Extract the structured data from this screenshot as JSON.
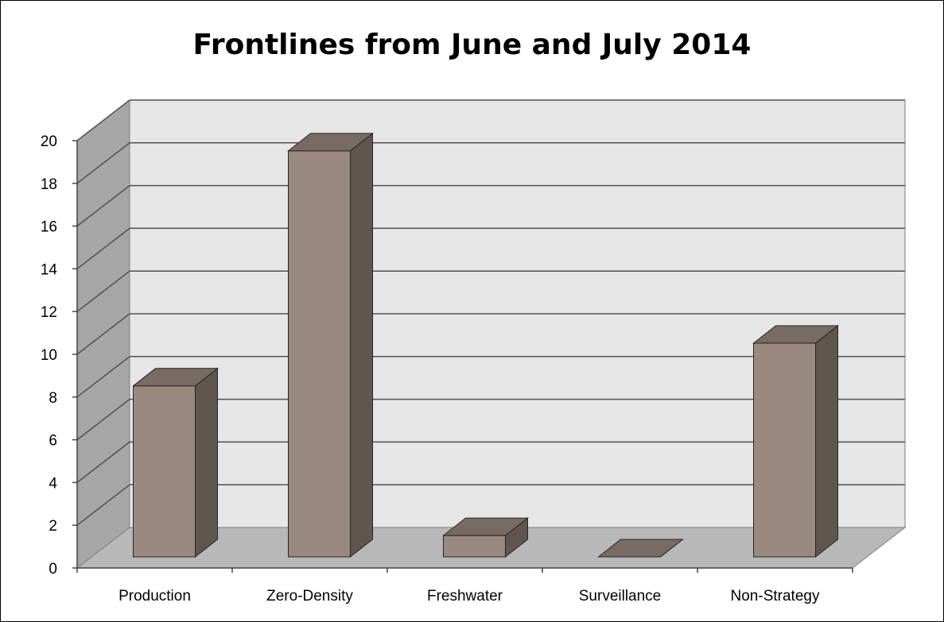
{
  "chart_data": {
    "type": "bar",
    "title": "Frontlines from June and July 2014",
    "categories": [
      "Production",
      "Zero-Density",
      "Freshwater",
      "Surveillance",
      "Non-Strategy"
    ],
    "values": [
      8,
      19,
      1,
      0,
      10
    ],
    "ylim": [
      0,
      20
    ],
    "yticks": [
      "0",
      "2",
      "4",
      "6",
      "8",
      "10",
      "12",
      "14",
      "16",
      "18",
      "20"
    ],
    "grid": true,
    "style": "3d-column",
    "colors": {
      "bar_front": "#9a8981",
      "bar_side": "#5f564f",
      "bar_top": "#776b63",
      "back_wall": "#e6e6e6",
      "side_wall": "#a6a6a6",
      "floor": "#b8b8b8",
      "grid": "#505050"
    }
  }
}
